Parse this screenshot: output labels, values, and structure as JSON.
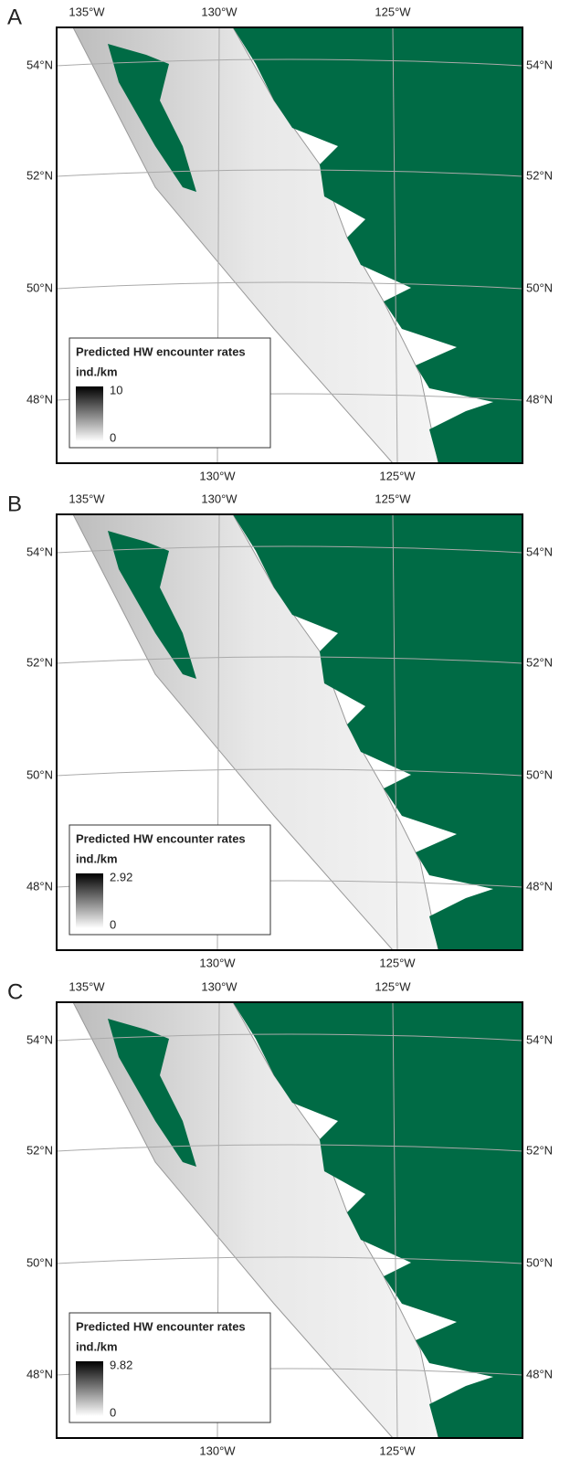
{
  "panels": [
    {
      "label": "A",
      "lon_top": [
        "135°W",
        "130°W",
        "125°W"
      ],
      "lon_bottom": [
        "130°W",
        "125°W"
      ],
      "lat_left": [
        "54°N",
        "52°N",
        "50°N",
        "48°N"
      ],
      "lat_right": [
        "54°N",
        "52°N",
        "50°N",
        "48°N"
      ],
      "legend": {
        "title": "Predicted HW encounter rates",
        "unit": "ind./km",
        "max": 10,
        "min": 0
      }
    },
    {
      "label": "B",
      "lon_top": [
        "135°W",
        "130°W",
        "125°W"
      ],
      "lon_bottom": [
        "130°W",
        "125°W"
      ],
      "lat_left": [
        "54°N",
        "52°N",
        "50°N",
        "48°N"
      ],
      "lat_right": [
        "54°N",
        "52°N",
        "50°N",
        "48°N"
      ],
      "legend": {
        "title": "Predicted HW encounter rates",
        "unit": "ind./km",
        "max": 2.92,
        "min": 0
      }
    },
    {
      "label": "C",
      "lon_top": [
        "135°W",
        "130°W",
        "125°W"
      ],
      "lon_bottom": [
        "130°W",
        "125°W"
      ],
      "lat_left": [
        "54°N",
        "52°N",
        "50°N",
        "48°N"
      ],
      "lat_right": [
        "54°N",
        "52°N",
        "50°N",
        "48°N"
      ],
      "legend": {
        "title": "Predicted HW encounter rates",
        "unit": "ind./km",
        "max": 9.82,
        "min": 0
      }
    }
  ]
}
